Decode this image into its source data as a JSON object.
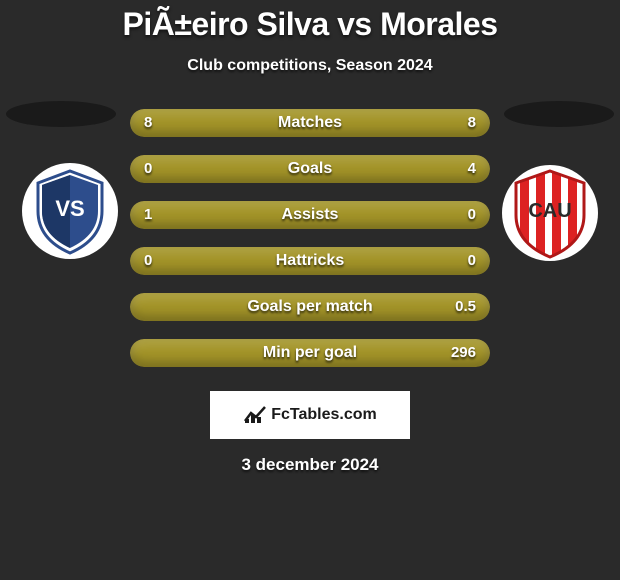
{
  "header": {
    "title": "PiÃ±eiro Silva vs Morales",
    "subtitle": "Club competitions, Season 2024"
  },
  "colors": {
    "bar_left": "#a39428",
    "bar_right": "#8a7d1f",
    "bar_full": "#a39428",
    "background": "#2a2a2a"
  },
  "stats": [
    {
      "label": "Matches",
      "left_val": "8",
      "right_val": "8",
      "left_pct": 50,
      "right_pct": 50,
      "full": true
    },
    {
      "label": "Goals",
      "left_val": "0",
      "right_val": "4",
      "left_pct": 0,
      "right_pct": 100,
      "full": true
    },
    {
      "label": "Assists",
      "left_val": "1",
      "right_val": "0",
      "left_pct": 100,
      "right_pct": 0,
      "full": true
    },
    {
      "label": "Hattricks",
      "left_val": "0",
      "right_val": "0",
      "left_pct": 50,
      "right_pct": 50,
      "full": true
    },
    {
      "label": "Goals per match",
      "left_val": "",
      "right_val": "0.5",
      "left_pct": 0,
      "right_pct": 100,
      "full": true
    },
    {
      "label": "Min per goal",
      "left_val": "",
      "right_val": "296",
      "left_pct": 0,
      "right_pct": 100,
      "full": true
    }
  ],
  "footer": {
    "brand": "FcTables.com",
    "date": "3 december 2024"
  },
  "crests": {
    "left": {
      "type": "shield-blue"
    },
    "right": {
      "type": "shield-redstripes"
    }
  }
}
